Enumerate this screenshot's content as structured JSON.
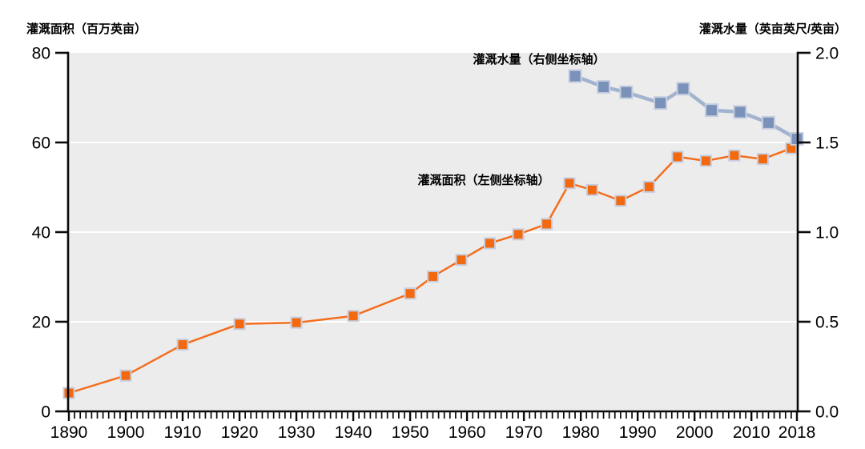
{
  "chart_data": {
    "type": "line",
    "title": "",
    "grid": "horizontal-white-on-gray",
    "plot_bg_color": "#ECECEC",
    "gridline_color": "#FFFFFF",
    "axis_color": "#0a0a0a",
    "x_axis": {
      "range": [
        1890,
        2018
      ],
      "major_tick_labels": [
        1890,
        1900,
        1910,
        1920,
        1930,
        1940,
        1950,
        1960,
        1970,
        1980,
        1990,
        2000,
        2010,
        2018
      ],
      "minor_tick_step_years": 1
    },
    "left_axis": {
      "title": "灌溉面积（百万英亩）",
      "range": [
        0,
        80
      ],
      "ticks": [
        "0",
        "20",
        "40",
        "60",
        "80"
      ],
      "tick_values": [
        0,
        20,
        40,
        60,
        80
      ],
      "gridline_values": [
        20,
        40,
        60
      ]
    },
    "right_axis": {
      "title": "灌溉水量（英亩英尺/英亩）",
      "range": [
        0,
        2.0
      ],
      "ticks": [
        "0.0",
        "0.5",
        "1.0",
        "1.5",
        "2.0"
      ],
      "tick_values": [
        0,
        0.5,
        1.0,
        1.5,
        2.0
      ]
    },
    "series": [
      {
        "name": "irrigated-area",
        "label": "灌溉面积（左侧坐标轴）",
        "axis": "left",
        "line_color": "#F36E1E",
        "marker_color": "#F2690F",
        "marker_border_color": "#C6CEDF",
        "marker_shape": "square",
        "x": [
          1890,
          1900,
          1910,
          1920,
          1930,
          1940,
          1950,
          1954,
          1959,
          1964,
          1969,
          1974,
          1978,
          1982,
          1987,
          1992,
          1997,
          2002,
          2007,
          2012,
          2017
        ],
        "values": [
          4.1,
          8.0,
          14.9,
          19.5,
          19.8,
          21.3,
          26.3,
          30.1,
          33.8,
          37.5,
          39.5,
          41.8,
          50.9,
          49.4,
          47.0,
          50.1,
          56.8,
          55.9,
          57.1,
          56.3,
          58.7
        ]
      },
      {
        "name": "water-application-rate",
        "label": "灌溉水量（右侧坐标轴）",
        "axis": "right",
        "line_color": "#A1B3CF",
        "marker_color": "#7A92BA",
        "marker_border_color": "#C6CEDF",
        "marker_shape": "square",
        "x": [
          1979,
          1984,
          1988,
          1994,
          1998,
          2003,
          2008,
          2013,
          2018
        ],
        "values": [
          1.87,
          1.81,
          1.78,
          1.72,
          1.8,
          1.68,
          1.67,
          1.61,
          1.52
        ]
      }
    ],
    "annotations": [
      {
        "text": "灌溉水量（右侧坐标轴）",
        "refers_to": "water-application-rate"
      },
      {
        "text": "灌溉面积（左侧坐标轴）",
        "refers_to": "irrigated-area"
      }
    ],
    "legend_position": "inline-annotations"
  }
}
